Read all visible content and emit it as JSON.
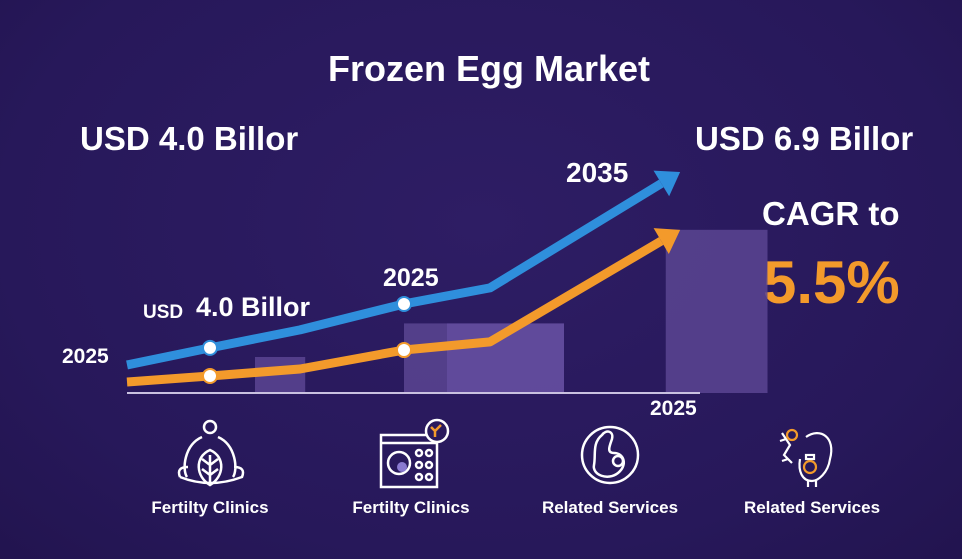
{
  "title": "Frozen Egg Market",
  "left_value": "USD 4.0 Billor",
  "right_value": "USD 6.9 Billor",
  "cagr_label": "CAGR to",
  "cagr_value": "5.5%",
  "colors": {
    "background": "#2a1a5c",
    "blue": "#2f8fdc",
    "orange": "#f39a2b",
    "bar": "#5a4592",
    "bar_light": "#6a52a6"
  },
  "chart_data": {
    "type": "line",
    "title": "Frozen Egg Market",
    "annotations": {
      "year_start": "2025",
      "year_mid": "2025",
      "year_end": "2035",
      "year_axis": "2025",
      "usd_prefix": "USD",
      "mid_value": "4.0 Billor"
    },
    "x": [
      0,
      1,
      2,
      3,
      4,
      5
    ],
    "ylim": [
      0,
      100
    ],
    "series": [
      {
        "name": "blue",
        "values": [
          11.7,
          18.8,
          26.3,
          37.1,
          43.8,
          90.8
        ],
        "markers": [
          1,
          3
        ]
      },
      {
        "name": "orange",
        "values": [
          4.6,
          7.1,
          10.0,
          17.9,
          21.3,
          66.7
        ],
        "markers": [
          1,
          3
        ]
      }
    ],
    "bars": [
      {
        "x_from": 1.5,
        "x_to": 2.05,
        "value": 15
      },
      {
        "x_from": 3.0,
        "x_to": 3.5,
        "value": 29
      },
      {
        "x_from": 3.5,
        "x_to": 4.4,
        "value": 29
      },
      {
        "x_from": 4.95,
        "x_to": 5.5,
        "value": 68
      }
    ]
  },
  "categories": [
    {
      "label": "Fertilty Clinics",
      "icon": "meditation-leaf-icon"
    },
    {
      "label": "Fertilty Clinics",
      "icon": "lab-screen-icon"
    },
    {
      "label": "Related Services",
      "icon": "embryo-icon"
    },
    {
      "label": "Related Services",
      "icon": "uterus-icon"
    }
  ]
}
